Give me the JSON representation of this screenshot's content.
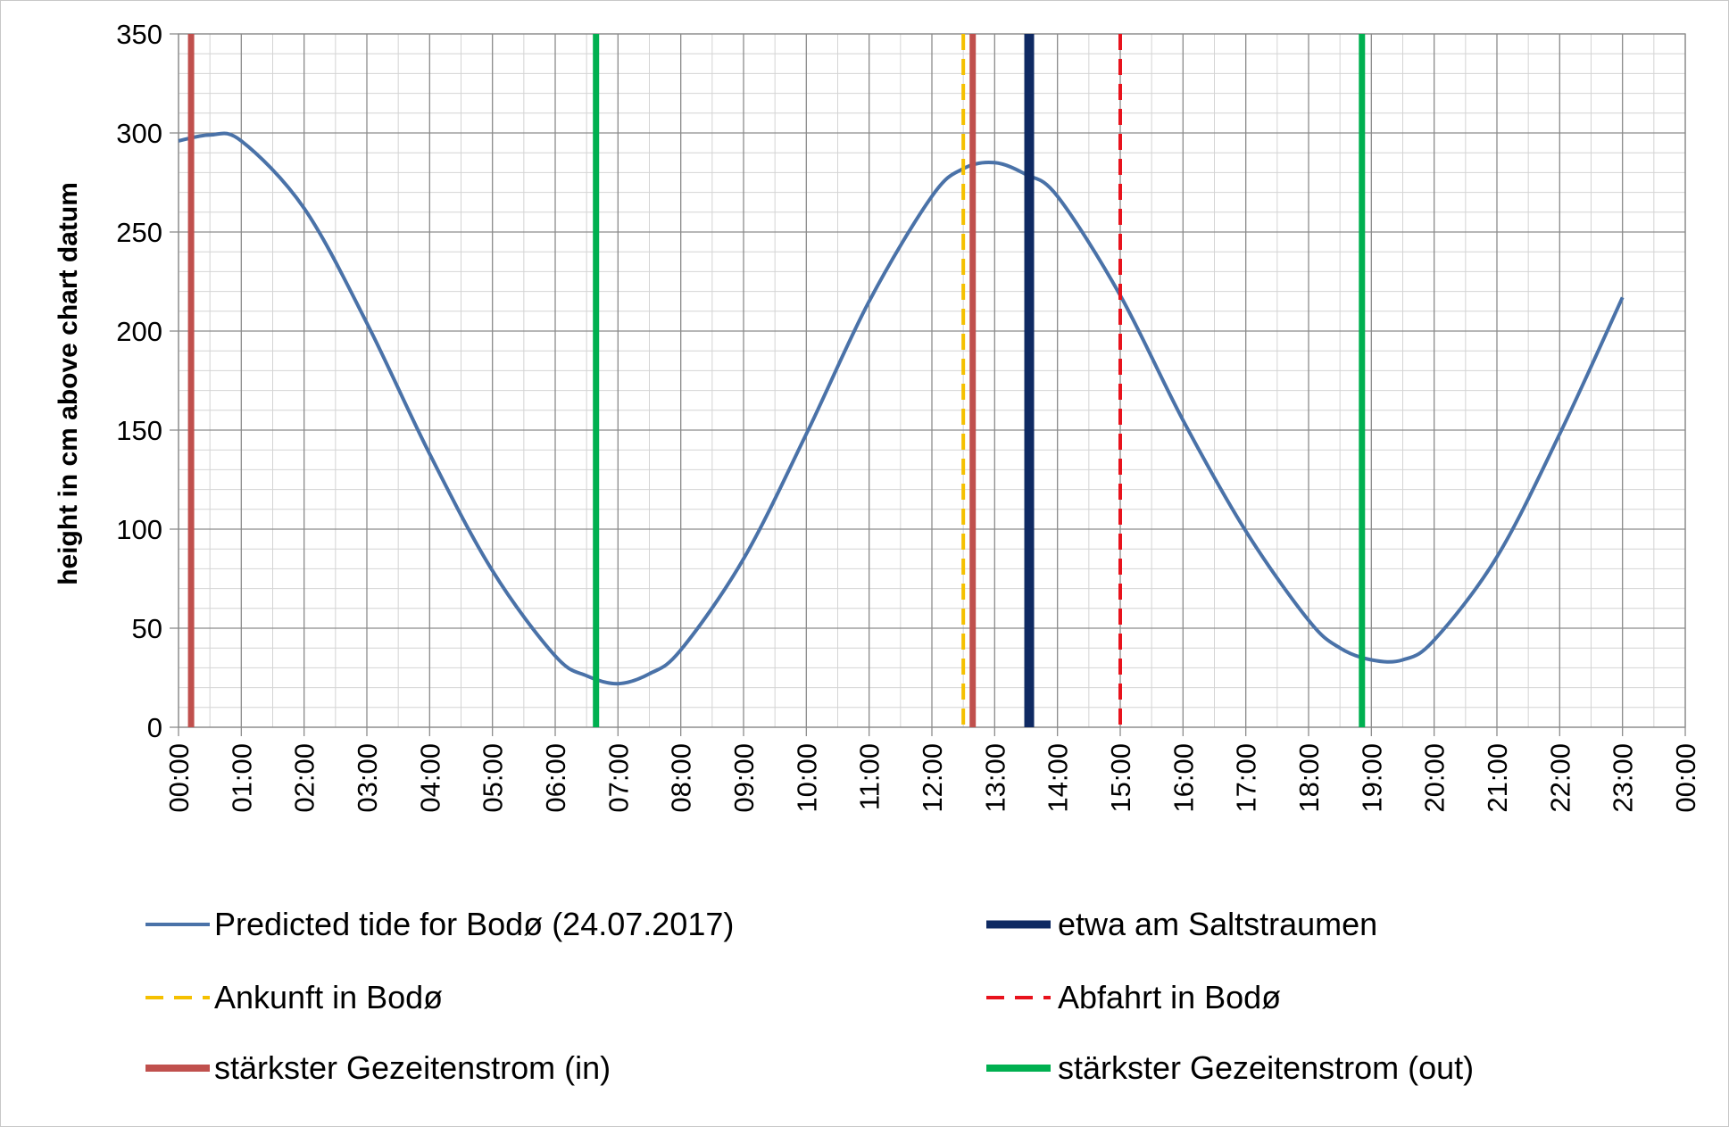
{
  "chart_data": {
    "type": "line",
    "ylabel": "height in cm above chart datum",
    "xlabel": "",
    "title": "",
    "ylim": [
      0,
      350
    ],
    "y_major_ticks": [
      0,
      50,
      100,
      150,
      200,
      250,
      300,
      350
    ],
    "y_minor_step": 10,
    "x_range_hours": [
      0,
      24
    ],
    "x_tick_labels": [
      "00:00",
      "01:00",
      "02:00",
      "03:00",
      "04:00",
      "05:00",
      "06:00",
      "07:00",
      "08:00",
      "09:00",
      "10:00",
      "11:00",
      "12:00",
      "13:00",
      "14:00",
      "15:00",
      "16:00",
      "17:00",
      "18:00",
      "19:00",
      "20:00",
      "21:00",
      "22:00",
      "23:00",
      "00:00"
    ],
    "x_minor_step_hours": 0.5,
    "grid": true,
    "legend_position": "bottom",
    "series": [
      {
        "name": "Predicted tide for Bodø (24.07.2017)",
        "color": "#4a72a8",
        "style": "solid",
        "x_hours": [
          0,
          0.5,
          1,
          2,
          3,
          4,
          5,
          6,
          6.5,
          7,
          7.5,
          8,
          9,
          10,
          11,
          12,
          12.5,
          13,
          13.5,
          14,
          15,
          16,
          17,
          18,
          18.5,
          19,
          19.5,
          20,
          21,
          22,
          23
        ],
        "values": [
          296,
          299,
          296,
          262,
          204,
          138,
          79,
          36,
          26,
          22,
          27,
          39,
          85,
          148,
          215,
          268,
          282,
          285,
          279,
          268,
          218,
          155,
          99,
          54,
          40,
          34,
          34,
          44,
          86,
          148,
          217
        ]
      }
    ],
    "markers": [
      {
        "name": "etwa am Saltstraumen",
        "color": "#0f2a63",
        "style": "solid",
        "x_hours": [
          13.55
        ]
      },
      {
        "name": "Ankunft in Bodø",
        "color": "#f5c000",
        "style": "dashed",
        "x_hours": [
          12.5
        ]
      },
      {
        "name": "Abfahrt in Bodø",
        "color": "#e8121c",
        "style": "dashed",
        "x_hours": [
          15.0
        ]
      },
      {
        "name": "stärkster Gezeitenstrom (in)",
        "color": "#c0504d",
        "style": "solid",
        "x_hours": [
          0.2,
          12.65
        ]
      },
      {
        "name": "stärkster Gezeitenstrom (out)",
        "color": "#00b050",
        "style": "solid",
        "x_hours": [
          6.65,
          18.85
        ]
      }
    ],
    "legend_order": [
      "Predicted tide for Bodø (24.07.2017)",
      "etwa am Saltstraumen",
      "Ankunft in Bodø",
      "Abfahrt in Bodø",
      "stärkster Gezeitenstrom (in)",
      "stärkster Gezeitenstrom (out)"
    ]
  }
}
